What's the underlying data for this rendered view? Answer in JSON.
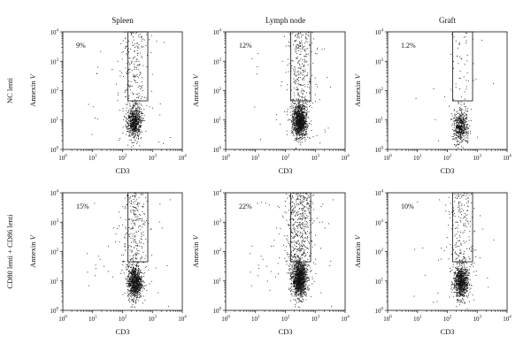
{
  "chart_data": {
    "type": "scatter",
    "scale": "log",
    "columns": [
      "Spleen",
      "Lymph node",
      "Graft"
    ],
    "rows": [
      "NC lenti",
      "CD80 lenti + CD86 lenti"
    ],
    "xlabel": "CD3",
    "ylabel": "Annexin V",
    "xticks": [
      "10^0",
      "10^1",
      "10^2",
      "10^3",
      "10^4"
    ],
    "yticks": [
      "10^0",
      "10^1",
      "10^2",
      "10^3",
      "10^4"
    ],
    "xlim": [
      1,
      10000
    ],
    "ylim": [
      1,
      10000
    ],
    "gate": {
      "x": [
        150,
        700
      ],
      "y": [
        45,
        10000
      ]
    },
    "panels": [
      {
        "row": 0,
        "col": 0,
        "title": "Spleen",
        "row_label": "NC lenti",
        "percent": "9%",
        "population": {
          "x_center": 250,
          "y_center": 8,
          "n_core": 700,
          "n_scatter": 220
        }
      },
      {
        "row": 0,
        "col": 1,
        "title": "Lymph node",
        "row_label": "NC lenti",
        "percent": "12%",
        "population": {
          "x_center": 300,
          "y_center": 9,
          "n_core": 1100,
          "n_scatter": 320
        }
      },
      {
        "row": 0,
        "col": 2,
        "title": "Graft",
        "row_label": "NC lenti",
        "percent": "1.2%",
        "population": {
          "x_center": 280,
          "y_center": 6,
          "n_core": 520,
          "n_scatter": 60
        }
      },
      {
        "row": 1,
        "col": 0,
        "title": "Spleen",
        "row_label": "CD80 lenti + CD86 lenti",
        "percent": "15%",
        "population": {
          "x_center": 260,
          "y_center": 9,
          "n_core": 900,
          "n_scatter": 280
        }
      },
      {
        "row": 1,
        "col": 1,
        "title": "Lymph node",
        "row_label": "CD80 lenti + CD86 lenti",
        "percent": "22%",
        "population": {
          "x_center": 300,
          "y_center": 11,
          "n_core": 1300,
          "n_scatter": 520
        }
      },
      {
        "row": 1,
        "col": 2,
        "title": "Graft",
        "row_label": "CD80 lenti + CD86 lenti",
        "percent": "10%",
        "population": {
          "x_center": 290,
          "y_center": 9,
          "n_core": 850,
          "n_scatter": 220
        }
      }
    ]
  }
}
